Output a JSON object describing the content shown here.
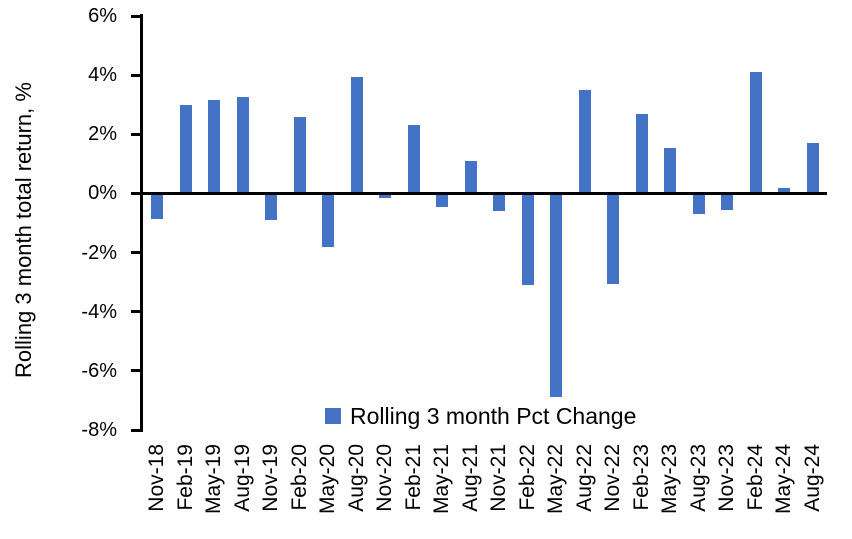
{
  "chart_data": {
    "type": "bar",
    "title": "",
    "xlabel": "",
    "ylabel": "Rolling 3 month total return, %",
    "legend": "Rolling 3 month Pct Change",
    "legend_position": "bottom-center-inside",
    "grid": false,
    "bar_color": "#4472C4",
    "axis_color": "#000000",
    "ylim": [
      -8,
      6
    ],
    "ytick_step": 2,
    "ytick_labels": [
      "6%",
      "4%",
      "2%",
      "0%",
      "-2%",
      "-4%",
      "-6%",
      "-8%"
    ],
    "ytick_values": [
      6,
      4,
      2,
      0,
      -2,
      -4,
      -6,
      -8
    ],
    "categories": [
      "Nov-18",
      "Feb-19",
      "May-19",
      "Aug-19",
      "Nov-19",
      "Feb-20",
      "May-20",
      "Aug-20",
      "Nov-20",
      "Feb-21",
      "May-21",
      "Aug-21",
      "Nov-21",
      "Feb-22",
      "May-22",
      "Aug-22",
      "Nov-22",
      "Feb-23",
      "May-23",
      "Aug-23",
      "Nov-23",
      "Feb-24",
      "May-24",
      "Aug-24"
    ],
    "values": [
      -0.85,
      3.0,
      3.15,
      3.25,
      -0.9,
      2.6,
      -1.8,
      3.95,
      -0.15,
      2.3,
      -0.45,
      1.1,
      -0.6,
      -3.1,
      -6.9,
      3.5,
      -3.05,
      2.7,
      1.55,
      -0.7,
      -0.55,
      4.1,
      0.2,
      1.7
    ]
  }
}
